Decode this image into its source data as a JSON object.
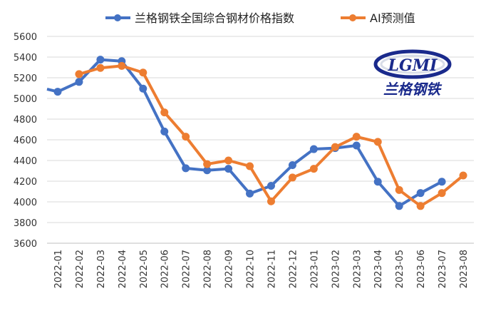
{
  "chart_data": {
    "type": "line",
    "title": "",
    "xlabel": "",
    "ylabel": "",
    "ylim": [
      3600,
      5600
    ],
    "yticks": [
      3600,
      3800,
      4000,
      4200,
      4400,
      4600,
      4800,
      5000,
      5200,
      5400,
      5600
    ],
    "categories": [
      "2022-01",
      "2022-02",
      "2022-03",
      "2022-04",
      "2022-05",
      "2022-06",
      "2022-07",
      "2022-08",
      "2022-09",
      "2022-10",
      "2022-11",
      "2022-12",
      "2023-01",
      "2023-02",
      "2023-03",
      "2023-04",
      "2023-05",
      "2023-06",
      "2023-07",
      "2023-08"
    ],
    "legend_position": "top",
    "grid": "horizontal",
    "series": [
      {
        "name": "兰格钢铁全国综合钢材价格指数",
        "color": "#4472c4",
        "values": [
          5065,
          5160,
          5375,
          5360,
          5095,
          4680,
          4325,
          4305,
          4320,
          4080,
          4155,
          4355,
          4510,
          4520,
          4545,
          4195,
          3960,
          4085,
          4195,
          null
        ]
      },
      {
        "name": "AI预测值",
        "color": "#ed7d31",
        "values": [
          null,
          5235,
          5295,
          5315,
          5250,
          4865,
          4630,
          4365,
          4400,
          4345,
          4005,
          4235,
          4320,
          4530,
          4630,
          4580,
          4115,
          3960,
          4085,
          4255
        ]
      }
    ],
    "pre_start_value": 5090
  },
  "logo": {
    "mark": "LGMI",
    "name": "兰格钢铁"
  }
}
